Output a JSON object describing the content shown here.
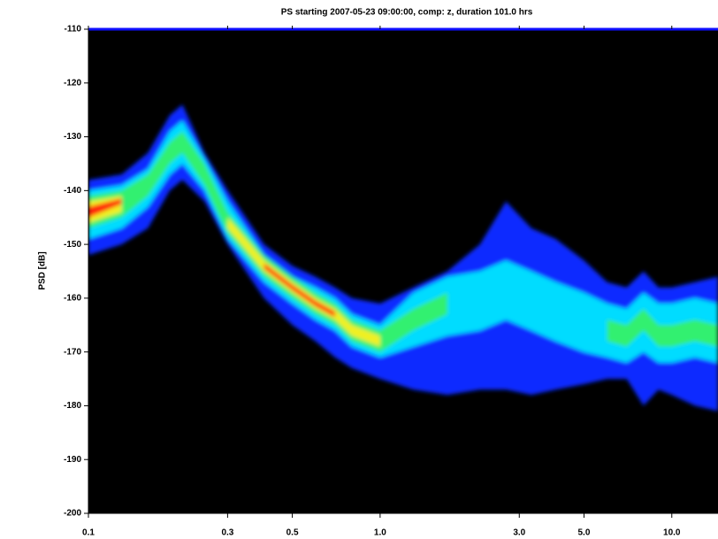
{
  "chart_data": {
    "type": "ppsd",
    "title": "PS starting 2007-05-23 09:00:00, comp: z, duration 101.0 hrs",
    "ylabel": "PSD [dB]",
    "xscale": "log",
    "xlim": [
      0.1,
      14.4
    ],
    "ylim": [
      -200,
      -110
    ],
    "xticks": [
      0.1,
      0.3,
      0.5,
      {
        "value": 1,
        "label": "1.0"
      },
      {
        "value": 3,
        "label": "3.0"
      },
      {
        "value": 5,
        "label": "5.0"
      },
      {
        "value": 10,
        "label": "10.0"
      }
    ],
    "yticks": [
      -110,
      -120,
      -130,
      -140,
      -150,
      -160,
      -170,
      -180,
      -190,
      -200
    ],
    "background": "#000000",
    "top_line_color": "#1010ff",
    "x": [
      0.1,
      0.13,
      0.16,
      0.19,
      0.21,
      0.25,
      0.3,
      0.4,
      0.5,
      0.6,
      0.7,
      0.8,
      1.0,
      1.3,
      1.7,
      2.2,
      2.7,
      3.3,
      4,
      5,
      6,
      7,
      8,
      9,
      10,
      12,
      14.4
    ],
    "bands": [
      {
        "color": "#0a2cff",
        "upper": [
          -138,
          -137,
          -133,
          -126,
          -124,
          -133,
          -140,
          -150,
          -154,
          -156,
          -158,
          -160,
          -161,
          -158,
          -155,
          -150,
          -142,
          -147,
          -149,
          -153,
          -157,
          -158,
          -155,
          -158,
          -158,
          -157,
          -156
        ],
        "lower": [
          -152,
          -150,
          -147,
          -140,
          -138,
          -142,
          -150,
          -160,
          -165,
          -168,
          -171,
          -173,
          -175,
          -177,
          -178,
          -177,
          -177,
          -178,
          -177,
          -176,
          -175,
          -175,
          -180,
          -177,
          -178,
          -180,
          -181
        ]
      },
      {
        "color": "#00dcff",
        "upper": [
          -140,
          -139,
          -136,
          -129,
          -127,
          -134,
          -142,
          -152,
          -156,
          -158,
          -160,
          -163,
          -165,
          -159,
          -156,
          -155,
          -153,
          -155,
          -157,
          -159,
          -161,
          -162,
          -159,
          -161,
          -161,
          -160,
          -161
        ],
        "lower": [
          -149,
          -147,
          -143,
          -137,
          -135,
          -140,
          -149,
          -157,
          -161,
          -164,
          -166,
          -169,
          -171,
          -169,
          -167,
          -166,
          -164,
          -166,
          -168,
          -170,
          -171,
          -172,
          -170,
          -172,
          -172,
          -171,
          -172
        ]
      },
      {
        "color": "#30f070",
        "upper": [
          -141,
          -140,
          -137,
          -131,
          -129,
          -135,
          -144,
          -152,
          -156,
          -159,
          -161,
          -164,
          -166,
          -162,
          -159,
          null,
          null,
          null,
          null,
          null,
          -164,
          -165,
          -162,
          -165,
          -165,
          -164,
          -165
        ],
        "lower": [
          -147,
          -145,
          -141,
          -135,
          -133,
          -139,
          -148,
          -156,
          -160,
          -163,
          -165,
          -168,
          -170,
          -166,
          -163,
          null,
          null,
          null,
          null,
          null,
          -168,
          -169,
          -166,
          -169,
          -169,
          -168,
          -169
        ]
      },
      {
        "color": "#f0f020",
        "upper": [
          -142,
          -141,
          null,
          null,
          null,
          null,
          -145,
          -153,
          -157,
          -160,
          -162,
          -165,
          -167,
          null,
          null,
          null,
          null,
          null,
          null,
          null,
          null,
          null,
          null,
          null,
          null,
          null,
          null
        ],
        "lower": [
          -146,
          -144,
          null,
          null,
          null,
          null,
          -147,
          -155,
          -159,
          -162,
          -164,
          -167,
          -169,
          null,
          null,
          null,
          null,
          null,
          null,
          null,
          null,
          null,
          null,
          null,
          null,
          null,
          null
        ]
      },
      {
        "color": "#ff2010",
        "upper": [
          -143,
          -141.5,
          null,
          null,
          null,
          null,
          null,
          -153.5,
          -157.5,
          -160.5,
          -162.5,
          null,
          null,
          null,
          null,
          null,
          null,
          null,
          null,
          null,
          null,
          null,
          null,
          null,
          null,
          null,
          null
        ],
        "lower": [
          -145,
          -142.5,
          null,
          null,
          null,
          null,
          null,
          -154.5,
          -158.5,
          -161.5,
          -163.5,
          null,
          null,
          null,
          null,
          null,
          null,
          null,
          null,
          null,
          null,
          null,
          null,
          null,
          null,
          null,
          null
        ]
      }
    ]
  }
}
